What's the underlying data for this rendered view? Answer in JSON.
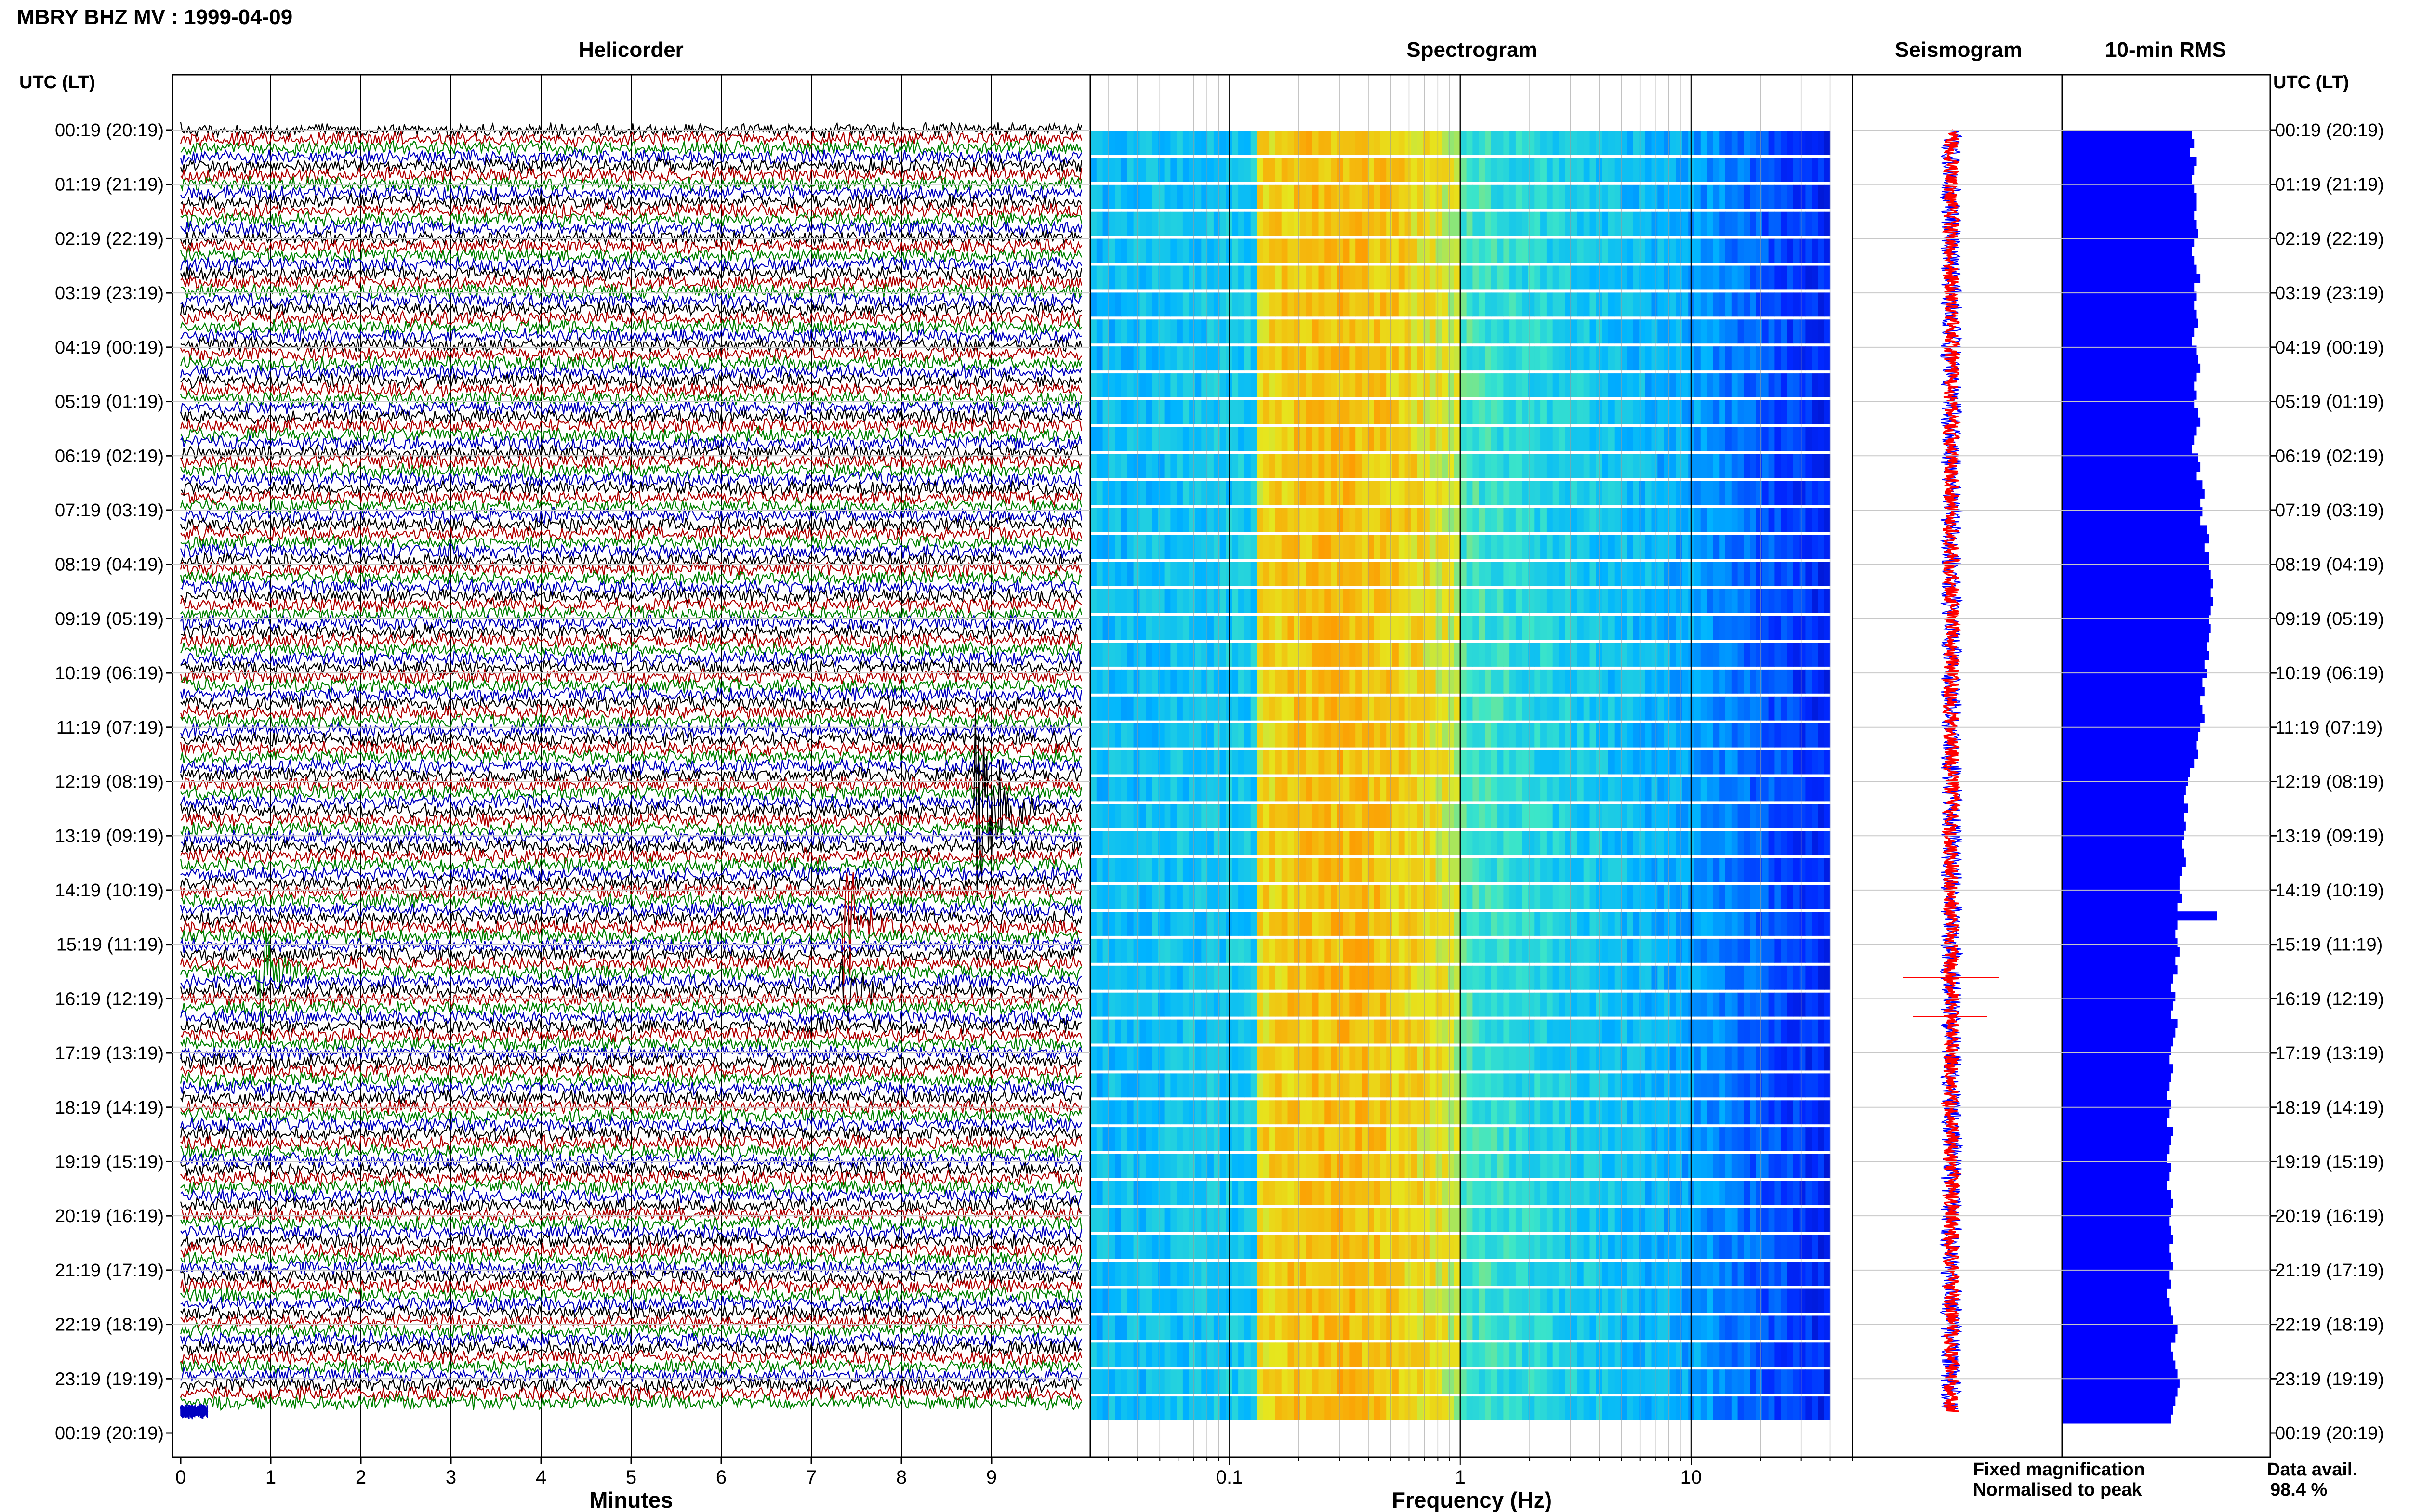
{
  "header": {
    "title": "MBRY BHZ MV : 1999-04-09",
    "utc_label_left": "UTC (LT)",
    "utc_label_right": "UTC (LT)"
  },
  "panels": {
    "helicorder": "Helicorder",
    "spectrogram": "Spectrogram",
    "seismogram": "Seismogram",
    "rms": "10-min RMS"
  },
  "axes": {
    "helicorder_xlabel": "Minutes",
    "spectrogram_xlabel": "Frequency (Hz)",
    "minute_ticks": [
      "0",
      "1",
      "2",
      "3",
      "4",
      "5",
      "6",
      "7",
      "8",
      "9"
    ],
    "freq_ticks": [
      {
        "label": "0.1",
        "value": 0.1
      },
      {
        "label": "1",
        "value": 1
      },
      {
        "label": "10",
        "value": 10
      }
    ]
  },
  "time_labels": [
    "00:19 (20:19)",
    "01:19 (21:19)",
    "02:19 (22:19)",
    "03:19 (23:19)",
    "04:19 (00:19)",
    "05:19 (01:19)",
    "06:19 (02:19)",
    "07:19 (03:19)",
    "08:19 (04:19)",
    "09:19 (05:19)",
    "10:19 (06:19)",
    "11:19 (07:19)",
    "12:19 (08:19)",
    "13:19 (09:19)",
    "14:19 (10:19)",
    "15:19 (11:19)",
    "16:19 (12:19)",
    "17:19 (13:19)",
    "18:19 (14:19)",
    "19:19 (15:19)",
    "20:19 (16:19)",
    "21:19 (17:19)",
    "22:19 (18:19)",
    "23:19 (19:19)",
    "00:19 (20:19)"
  ],
  "legend": {
    "fixed": "Fixed magnification",
    "normalised": "Normalised to peak",
    "fixed_color": "#0000ff",
    "normalised_color": "#ff0000"
  },
  "data_availability": {
    "label": "Data avail.",
    "value": "98.4 %"
  },
  "colors": {
    "trace_cycle": [
      "#000000",
      "#b00000",
      "#008000",
      "#0000c0"
    ],
    "rms_bar": "#0000ff"
  },
  "chart_data": [
    {
      "type": "line",
      "name": "helicorder",
      "x_range_minutes": [
        0,
        10
      ],
      "rows": 144,
      "row_minutes": 10,
      "events": [
        {
          "row": 76,
          "minute": 8.85,
          "amplitude": 3.5
        },
        {
          "row": 89,
          "minute": 7.4,
          "amplitude": 1.6
        },
        {
          "row": 94,
          "minute": 0.9,
          "amplitude": 1.4
        },
        {
          "row": 96,
          "minute": 7.35,
          "amplitude": 1.0
        }
      ]
    },
    {
      "type": "heatmap",
      "name": "spectrogram",
      "x_scale": "log",
      "x_range_hz": [
        0.025,
        50
      ],
      "data_max_hz": 40
    },
    {
      "type": "line",
      "name": "seismogram"
    },
    {
      "type": "bar",
      "name": "rms",
      "orientation": "horizontal",
      "values": [
        0.62,
        0.63,
        0.61,
        0.64,
        0.63,
        0.62,
        0.63,
        0.64,
        0.64,
        0.63,
        0.64,
        0.65,
        0.63,
        0.62,
        0.63,
        0.64,
        0.66,
        0.63,
        0.64,
        0.63,
        0.64,
        0.65,
        0.63,
        0.62,
        0.64,
        0.65,
        0.66,
        0.64,
        0.63,
        0.64,
        0.63,
        0.65,
        0.66,
        0.64,
        0.63,
        0.62,
        0.65,
        0.66,
        0.64,
        0.67,
        0.68,
        0.66,
        0.67,
        0.66,
        0.69,
        0.7,
        0.68,
        0.7,
        0.7,
        0.71,
        0.72,
        0.71,
        0.72,
        0.71,
        0.7,
        0.71,
        0.7,
        0.69,
        0.7,
        0.68,
        0.69,
        0.67,
        0.68,
        0.66,
        0.67,
        0.68,
        0.66,
        0.65,
        0.64,
        0.65,
        0.63,
        0.61,
        0.6,
        0.59,
        0.58,
        0.6,
        0.58,
        0.59,
        0.58,
        0.57,
        0.58,
        0.59,
        0.57,
        0.56,
        0.56,
        0.57,
        0.55,
        0.74,
        0.55,
        0.54,
        0.55,
        0.56,
        0.54,
        0.55,
        0.53,
        0.52,
        0.54,
        0.53,
        0.52,
        0.55,
        0.54,
        0.53,
        0.52,
        0.51,
        0.53,
        0.52,
        0.51,
        0.5,
        0.52,
        0.51,
        0.5,
        0.53,
        0.52,
        0.51,
        0.5,
        0.52,
        0.51,
        0.5,
        0.52,
        0.53,
        0.52,
        0.51,
        0.52,
        0.53,
        0.51,
        0.52,
        0.53,
        0.51,
        0.52,
        0.5,
        0.51,
        0.52,
        0.53,
        0.55,
        0.54,
        0.52,
        0.53,
        0.54,
        0.55,
        0.56,
        0.55,
        0.54,
        0.53,
        0.52
      ]
    }
  ]
}
